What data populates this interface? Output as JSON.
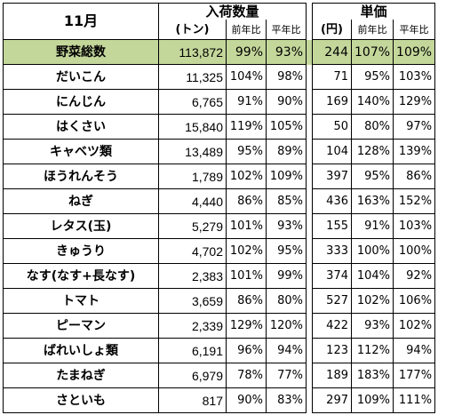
{
  "header": {
    "month": "11月",
    "volume_group": "入荷数量",
    "volume_unit": "(トン)",
    "price_group": "単価",
    "price_unit": "(円)",
    "yoy": "前年比",
    "normal": "平年比"
  },
  "total": {
    "name": "野菜総数",
    "volume": "113,872",
    "vol_yoy": "99%",
    "vol_normal": "93%",
    "price": "244",
    "price_yoy": "107%",
    "price_normal": "109%"
  },
  "rows": [
    {
      "name": "だいこん",
      "volume": "11,325",
      "vol_yoy": "104%",
      "vol_normal": "98%",
      "price": "71",
      "price_yoy": "95%",
      "price_normal": "103%"
    },
    {
      "name": "にんじん",
      "volume": "6,765",
      "vol_yoy": "91%",
      "vol_normal": "90%",
      "price": "169",
      "price_yoy": "140%",
      "price_normal": "129%"
    },
    {
      "name": "はくさい",
      "volume": "15,840",
      "vol_yoy": "119%",
      "vol_normal": "105%",
      "price": "50",
      "price_yoy": "80%",
      "price_normal": "97%"
    },
    {
      "name": "キャベツ類",
      "volume": "13,489",
      "vol_yoy": "95%",
      "vol_normal": "89%",
      "price": "104",
      "price_yoy": "128%",
      "price_normal": "139%"
    },
    {
      "name": "ほうれんそう",
      "volume": "1,789",
      "vol_yoy": "102%",
      "vol_normal": "109%",
      "price": "397",
      "price_yoy": "95%",
      "price_normal": "86%"
    },
    {
      "name": "ねぎ",
      "volume": "4,440",
      "vol_yoy": "86%",
      "vol_normal": "85%",
      "price": "436",
      "price_yoy": "163%",
      "price_normal": "152%"
    },
    {
      "name": "レタス(玉)",
      "volume": "5,279",
      "vol_yoy": "101%",
      "vol_normal": "93%",
      "price": "155",
      "price_yoy": "91%",
      "price_normal": "103%"
    },
    {
      "name": "きゅうり",
      "volume": "4,702",
      "vol_yoy": "102%",
      "vol_normal": "95%",
      "price": "333",
      "price_yoy": "100%",
      "price_normal": "100%"
    },
    {
      "name": "なす(なす+長なす)",
      "volume": "2,383",
      "vol_yoy": "101%",
      "vol_normal": "99%",
      "price": "374",
      "price_yoy": "104%",
      "price_normal": "92%"
    },
    {
      "name": "トマト",
      "volume": "3,659",
      "vol_yoy": "86%",
      "vol_normal": "80%",
      "price": "527",
      "price_yoy": "102%",
      "price_normal": "106%"
    },
    {
      "name": "ピーマン",
      "volume": "2,339",
      "vol_yoy": "129%",
      "vol_normal": "120%",
      "price": "422",
      "price_yoy": "93%",
      "price_normal": "102%"
    },
    {
      "name": "ばれいしょ類",
      "volume": "6,191",
      "vol_yoy": "96%",
      "vol_normal": "94%",
      "price": "123",
      "price_yoy": "112%",
      "price_normal": "94%"
    },
    {
      "name": "たまねぎ",
      "volume": "6,979",
      "vol_yoy": "78%",
      "vol_normal": "77%",
      "price": "189",
      "price_yoy": "183%",
      "price_normal": "177%"
    },
    {
      "name": "さといも",
      "volume": "817",
      "vol_yoy": "90%",
      "vol_normal": "83%",
      "price": "297",
      "price_yoy": "109%",
      "price_normal": "111%"
    }
  ],
  "colors": {
    "total_row_bg": "#c4d79b",
    "border": "#000000"
  }
}
